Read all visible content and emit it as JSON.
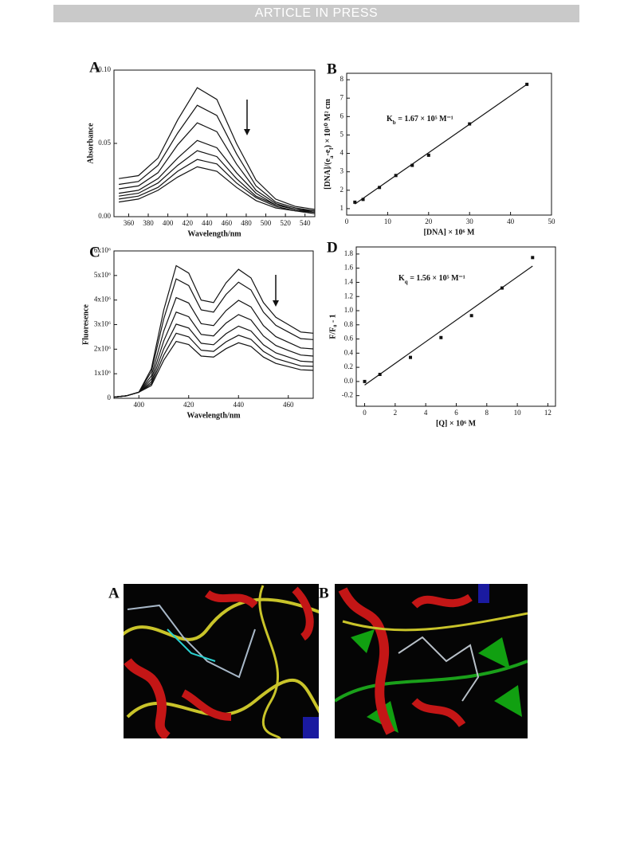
{
  "header": "ARTICLE IN PRESS",
  "chart_data": [
    {
      "type": "line",
      "panel_label": "A",
      "xlabel": "Wavelength/nm",
      "ylabel": "Absorbance",
      "xlim": [
        345,
        550
      ],
      "ylim": [
        0,
        0.1
      ],
      "xticks": [
        360,
        380,
        400,
        420,
        440,
        460,
        480,
        500,
        520,
        540
      ],
      "yticks": [
        {
          "value": 0,
          "label": "0.00"
        },
        {
          "value": 0.05,
          "label": "0.05"
        },
        {
          "value": 0.1,
          "label": "0.10"
        }
      ],
      "x": [
        350,
        370,
        390,
        410,
        430,
        450,
        470,
        490,
        510,
        530,
        550
      ],
      "series": [
        {
          "color": "#111111",
          "values": [
            0.026,
            0.028,
            0.04,
            0.066,
            0.088,
            0.08,
            0.05,
            0.025,
            0.012,
            0.007,
            0.005
          ]
        },
        {
          "color": "#111111",
          "values": [
            0.022,
            0.024,
            0.035,
            0.057,
            0.076,
            0.069,
            0.043,
            0.021,
            0.01,
            0.006,
            0.004
          ]
        },
        {
          "color": "#111111",
          "values": [
            0.019,
            0.021,
            0.03,
            0.049,
            0.064,
            0.058,
            0.036,
            0.018,
            0.009,
            0.005,
            0.004
          ]
        },
        {
          "color": "#111111",
          "values": [
            0.016,
            0.018,
            0.026,
            0.04,
            0.052,
            0.047,
            0.03,
            0.016,
            0.008,
            0.005,
            0.003
          ]
        },
        {
          "color": "#111111",
          "values": [
            0.014,
            0.016,
            0.023,
            0.035,
            0.045,
            0.041,
            0.026,
            0.014,
            0.008,
            0.005,
            0.003
          ]
        },
        {
          "color": "#111111",
          "values": [
            0.012,
            0.014,
            0.02,
            0.031,
            0.039,
            0.036,
            0.023,
            0.013,
            0.007,
            0.004,
            0.003
          ]
        },
        {
          "color": "#111111",
          "values": [
            0.01,
            0.012,
            0.018,
            0.027,
            0.034,
            0.031,
            0.02,
            0.011,
            0.006,
            0.004,
            0.002
          ]
        }
      ]
    },
    {
      "type": "scatter",
      "panel_label": "B",
      "xlabel": "[DNA] × 10⁶ M",
      "ylabel": [
        "[DNA]/(e",
        "a",
        "-e",
        "f",
        ") × 10¹⁰ M² cm"
      ],
      "annotation": [
        "K",
        "b",
        " = 1.67 × 10⁵ M⁻¹"
      ],
      "xlim": [
        0,
        50
      ],
      "ylim": [
        0.65,
        8.35
      ],
      "xticks": [
        0,
        10,
        20,
        30,
        40,
        50
      ],
      "yticks": [
        1,
        2,
        3,
        4,
        5,
        6,
        7,
        8
      ],
      "color": "#111111",
      "x": [
        2,
        4,
        8,
        12,
        16,
        20,
        30,
        44
      ],
      "values": [
        1.35,
        1.5,
        2.15,
        2.8,
        3.35,
        3.9,
        5.6,
        7.75
      ],
      "fit": {
        "x": [
          2,
          44
        ],
        "values": [
          1.25,
          7.75
        ]
      }
    },
    {
      "type": "line",
      "panel_label": "C",
      "xlabel": "Wavelength/nm",
      "ylabel": "Fluoresence",
      "xlim": [
        390,
        470
      ],
      "ylim": [
        0,
        6000000
      ],
      "xticks": [
        400,
        420,
        440,
        460
      ],
      "yticks": [
        0,
        {
          "value": 1000000,
          "label": "1x10⁶"
        },
        {
          "value": 2000000,
          "label": "2x10⁶"
        },
        {
          "value": 3000000,
          "label": "3x10⁶"
        },
        {
          "value": 4000000,
          "label": "4x10⁶"
        },
        {
          "value": 5000000,
          "label": "5x10⁶"
        },
        {
          "value": 6000000,
          "label": "6x10⁶"
        }
      ],
      "x": [
        390,
        395,
        400,
        405,
        410,
        415,
        420,
        425,
        430,
        435,
        440,
        445,
        450,
        455,
        460,
        465,
        470
      ],
      "series": [
        {
          "color": "#111111",
          "values": [
            50000,
            100000,
            250000,
            1200000,
            3600000,
            5400000,
            5100000,
            4000000,
            3900000,
            4700000,
            5250000,
            4900000,
            3900000,
            3300000,
            3000000,
            2700000,
            2650000
          ]
        },
        {
          "color": "#111111",
          "values": [
            50000,
            100000,
            250000,
            1080000,
            3240000,
            4860000,
            4590000,
            3600000,
            3510000,
            4230000,
            4730000,
            4410000,
            3510000,
            2970000,
            2700000,
            2430000,
            2390000
          ]
        },
        {
          "color": "#111111",
          "values": [
            50000,
            100000,
            250000,
            910000,
            2740000,
            4100000,
            3880000,
            3040000,
            2960000,
            3570000,
            3990000,
            3720000,
            2960000,
            2510000,
            2280000,
            2050000,
            2010000
          ]
        },
        {
          "color": "#111111",
          "values": [
            50000,
            100000,
            250000,
            780000,
            2340000,
            3510000,
            3320000,
            2600000,
            2540000,
            3060000,
            3410000,
            3190000,
            2540000,
            2150000,
            1950000,
            1760000,
            1720000
          ]
        },
        {
          "color": "#111111",
          "values": [
            50000,
            100000,
            250000,
            670000,
            2020000,
            3020000,
            2860000,
            2240000,
            2180000,
            2630000,
            2940000,
            2740000,
            2180000,
            1850000,
            1680000,
            1510000,
            1480000
          ]
        },
        {
          "color": "#111111",
          "values": [
            50000,
            100000,
            250000,
            590000,
            1760000,
            2650000,
            2500000,
            1960000,
            1910000,
            2300000,
            2570000,
            2400000,
            1910000,
            1620000,
            1470000,
            1320000,
            1300000
          ]
        },
        {
          "color": "#111111",
          "values": [
            50000,
            100000,
            250000,
            520000,
            1550000,
            2320000,
            2190000,
            1720000,
            1680000,
            2020000,
            2260000,
            2110000,
            1680000,
            1420000,
            1290000,
            1160000,
            1140000
          ]
        }
      ]
    },
    {
      "type": "scatter",
      "panel_label": "D",
      "xlabel": "[Q] × 10⁶ M",
      "ylabel": "F/F₀ - 1",
      "annotation": [
        "K",
        "q",
        " = 1.56 × 10⁵ M⁻¹"
      ],
      "xlim": [
        -0.55,
        12.5
      ],
      "ylim": [
        -0.35,
        1.9
      ],
      "xticks": [
        0,
        2,
        4,
        6,
        8,
        10,
        12
      ],
      "yticks": [
        -0.2,
        {
          "value": 0,
          "label": "0.0"
        },
        0.2,
        0.4,
        0.6,
        0.8,
        {
          "value": 1,
          "label": "1.0"
        },
        1.2,
        1.4,
        1.6,
        1.8
      ],
      "color": "#111111",
      "x": [
        0,
        1,
        3,
        5,
        7,
        9,
        11
      ],
      "values": [
        0.0,
        0.1,
        0.34,
        0.62,
        0.93,
        1.32,
        1.75
      ],
      "fit": {
        "x": [
          0,
          11
        ],
        "values": [
          -0.05,
          1.63
        ]
      }
    }
  ],
  "figure2": {
    "labels": [
      "A",
      "B"
    ]
  }
}
